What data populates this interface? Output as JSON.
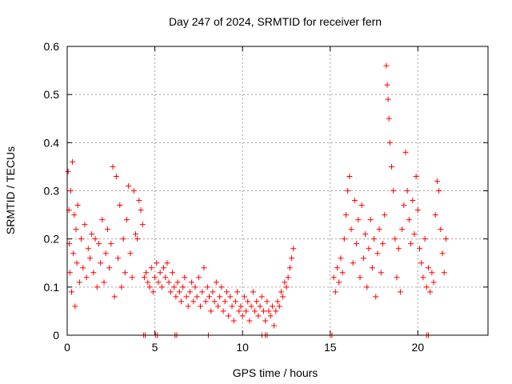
{
  "chart_data": {
    "type": "scatter",
    "title": "Day 247 of 2024, SRMTID for receiver fern",
    "xlabel": "GPS time / hours",
    "ylabel": "SRMTID / TECUs",
    "xlim": [
      0,
      24
    ],
    "ylim": [
      0,
      0.6
    ],
    "x_ticks": [
      0,
      5,
      10,
      15,
      20
    ],
    "x_tick_labels": [
      "0",
      "5",
      "10",
      "15",
      "20"
    ],
    "y_ticks": [
      0,
      0.1,
      0.2,
      0.3,
      0.4,
      0.5,
      0.6
    ],
    "y_tick_labels": [
      "0",
      "0.1",
      "0.2",
      "0.3",
      "0.4",
      "0.5",
      "0.6"
    ],
    "grid": true,
    "marker": "+",
    "color": "#ff0000",
    "series": [
      {
        "name": "SRMTID",
        "points": [
          [
            0.05,
            0.34
          ],
          [
            0.1,
            0.26
          ],
          [
            0.12,
            0.19
          ],
          [
            0.15,
            0.13
          ],
          [
            0.2,
            0.3
          ],
          [
            0.25,
            0.09
          ],
          [
            0.3,
            0.36
          ],
          [
            0.35,
            0.17
          ],
          [
            0.4,
            0.25
          ],
          [
            0.45,
            0.06
          ],
          [
            0.5,
            0.22
          ],
          [
            0.55,
            0.15
          ],
          [
            0.6,
            0.27
          ],
          [
            0.7,
            0.11
          ],
          [
            0.8,
            0.2
          ],
          [
            0.9,
            0.14
          ],
          [
            1.0,
            0.23
          ],
          [
            1.1,
            0.12
          ],
          [
            1.2,
            0.18
          ],
          [
            1.3,
            0.16
          ],
          [
            1.4,
            0.21
          ],
          [
            1.5,
            0.13
          ],
          [
            1.6,
            0.2
          ],
          [
            1.7,
            0.1
          ],
          [
            1.8,
            0.19
          ],
          [
            1.9,
            0.15
          ],
          [
            2.0,
            0.24
          ],
          [
            2.1,
            0.11
          ],
          [
            2.2,
            0.17
          ],
          [
            2.3,
            0.22
          ],
          [
            2.4,
            0.14
          ],
          [
            2.5,
            0.19
          ],
          [
            2.6,
            0.35
          ],
          [
            2.7,
            0.08
          ],
          [
            2.8,
            0.33
          ],
          [
            2.9,
            0.16
          ],
          [
            3.0,
            0.27
          ],
          [
            3.1,
            0.1
          ],
          [
            3.2,
            0.2
          ],
          [
            3.3,
            0.13
          ],
          [
            3.4,
            0.24
          ],
          [
            3.5,
            0.31
          ],
          [
            3.6,
            0.17
          ],
          [
            3.7,
            0.12
          ],
          [
            3.8,
            0.3
          ],
          [
            3.9,
            0.21
          ],
          [
            4.0,
            0.2
          ],
          [
            4.1,
            0.28
          ],
          [
            4.2,
            0.26
          ],
          [
            4.3,
            0.23
          ],
          [
            4.4,
            0.12
          ],
          [
            4.5,
            0.13
          ],
          [
            4.6,
            0.11
          ],
          [
            4.7,
            0.1
          ],
          [
            4.8,
            0.14
          ],
          [
            4.9,
            0.09
          ],
          [
            5.0,
            0.12
          ],
          [
            5.1,
            0.15
          ],
          [
            5.2,
            0.11
          ],
          [
            5.3,
            0.13
          ],
          [
            5.4,
            0.1
          ],
          [
            5.5,
            0.14
          ],
          [
            5.6,
            0.12
          ],
          [
            5.7,
            0.15
          ],
          [
            5.8,
            0.11
          ],
          [
            5.9,
            0.09
          ],
          [
            6.0,
            0.13
          ],
          [
            6.1,
            0.1
          ],
          [
            6.2,
            0.08
          ],
          [
            6.3,
            0.11
          ],
          [
            6.4,
            0.09
          ],
          [
            6.5,
            0.07
          ],
          [
            6.6,
            0.1
          ],
          [
            6.7,
            0.12
          ],
          [
            6.8,
            0.08
          ],
          [
            6.9,
            0.06
          ],
          [
            7.0,
            0.09
          ],
          [
            7.1,
            0.11
          ],
          [
            7.2,
            0.07
          ],
          [
            7.3,
            0.1
          ],
          [
            7.4,
            0.08
          ],
          [
            7.5,
            0.12
          ],
          [
            7.6,
            0.06
          ],
          [
            7.7,
            0.09
          ],
          [
            7.8,
            0.14
          ],
          [
            7.9,
            0.07
          ],
          [
            8.0,
            0.1
          ],
          [
            8.1,
            0.08
          ],
          [
            8.2,
            0.05
          ],
          [
            8.3,
            0.09
          ],
          [
            8.4,
            0.07
          ],
          [
            8.5,
            0.11
          ],
          [
            8.6,
            0.06
          ],
          [
            8.7,
            0.08
          ],
          [
            8.8,
            0.1
          ],
          [
            8.9,
            0.05
          ],
          [
            9.0,
            0.07
          ],
          [
            9.1,
            0.09
          ],
          [
            9.2,
            0.04
          ],
          [
            9.3,
            0.08
          ],
          [
            9.4,
            0.06
          ],
          [
            9.5,
            0.03
          ],
          [
            9.6,
            0.07
          ],
          [
            9.7,
            0.09
          ],
          [
            9.8,
            0.05
          ],
          [
            9.9,
            0.06
          ],
          [
            10.0,
            0.04
          ],
          [
            10.1,
            0.08
          ],
          [
            10.2,
            0.05
          ],
          [
            10.3,
            0.07
          ],
          [
            10.4,
            0.03
          ],
          [
            10.5,
            0.06
          ],
          [
            10.6,
            0.09
          ],
          [
            10.7,
            0.05
          ],
          [
            10.8,
            0.07
          ],
          [
            10.9,
            0.04
          ],
          [
            11.0,
            0.06
          ],
          [
            11.1,
            0.08
          ],
          [
            11.2,
            0.05
          ],
          [
            11.3,
            0.03
          ],
          [
            11.4,
            0.07
          ],
          [
            11.5,
            0.05
          ],
          [
            11.6,
            0.04
          ],
          [
            11.7,
            0.06
          ],
          [
            11.8,
            0.02
          ],
          [
            11.9,
            0.05
          ],
          [
            12.0,
            0.07
          ],
          [
            12.1,
            0.06
          ],
          [
            12.2,
            0.09
          ],
          [
            12.3,
            0.08
          ],
          [
            12.4,
            0.11
          ],
          [
            12.5,
            0.1
          ],
          [
            12.6,
            0.12
          ],
          [
            12.7,
            0.14
          ],
          [
            12.8,
            0.16
          ],
          [
            12.9,
            0.18
          ],
          [
            15.2,
            0.12
          ],
          [
            15.3,
            0.09
          ],
          [
            15.4,
            0.14
          ],
          [
            15.5,
            0.11
          ],
          [
            15.6,
            0.16
          ],
          [
            15.7,
            0.13
          ],
          [
            15.8,
            0.2
          ],
          [
            15.9,
            0.25
          ],
          [
            16.0,
            0.3
          ],
          [
            16.1,
            0.33
          ],
          [
            16.2,
            0.22
          ],
          [
            16.3,
            0.15
          ],
          [
            16.4,
            0.28
          ],
          [
            16.5,
            0.19
          ],
          [
            16.6,
            0.24
          ],
          [
            16.7,
            0.12
          ],
          [
            16.8,
            0.27
          ],
          [
            16.9,
            0.16
          ],
          [
            17.0,
            0.21
          ],
          [
            17.1,
            0.1
          ],
          [
            17.2,
            0.18
          ],
          [
            17.3,
            0.24
          ],
          [
            17.4,
            0.14
          ],
          [
            17.5,
            0.2
          ],
          [
            17.6,
            0.08
          ],
          [
            17.7,
            0.17
          ],
          [
            17.8,
            0.22
          ],
          [
            17.9,
            0.13
          ],
          [
            18.0,
            0.19
          ],
          [
            18.1,
            0.25
          ],
          [
            18.2,
            0.56
          ],
          [
            18.25,
            0.52
          ],
          [
            18.3,
            0.49
          ],
          [
            18.35,
            0.45
          ],
          [
            18.4,
            0.4
          ],
          [
            18.5,
            0.35
          ],
          [
            18.6,
            0.3
          ],
          [
            18.7,
            0.2
          ],
          [
            18.8,
            0.12
          ],
          [
            18.9,
            0.18
          ],
          [
            19.0,
            0.09
          ],
          [
            19.1,
            0.22
          ],
          [
            19.2,
            0.27
          ],
          [
            19.3,
            0.38
          ],
          [
            19.4,
            0.3
          ],
          [
            19.5,
            0.24
          ],
          [
            19.6,
            0.19
          ],
          [
            19.7,
            0.28
          ],
          [
            19.8,
            0.21
          ],
          [
            19.9,
            0.33
          ],
          [
            20.0,
            0.26
          ],
          [
            20.1,
            0.18
          ],
          [
            20.2,
            0.15
          ],
          [
            20.3,
            0.12
          ],
          [
            20.4,
            0.2
          ],
          [
            20.5,
            0.1
          ],
          [
            20.6,
            0.14
          ],
          [
            20.7,
            0.09
          ],
          [
            20.8,
            0.13
          ],
          [
            20.9,
            0.11
          ],
          [
            21.0,
            0.25
          ],
          [
            21.1,
            0.32
          ],
          [
            21.2,
            0.3
          ],
          [
            21.3,
            0.22
          ],
          [
            21.4,
            0.17
          ],
          [
            21.5,
            0.13
          ],
          [
            21.6,
            0.2
          ]
        ],
        "zero_points": [
          4.35,
          4.45,
          5.05,
          5.15,
          6.15,
          6.25,
          8.05,
          11.1,
          11.3,
          11.4,
          15.0,
          15.1,
          20.5,
          20.6
        ]
      }
    ]
  }
}
